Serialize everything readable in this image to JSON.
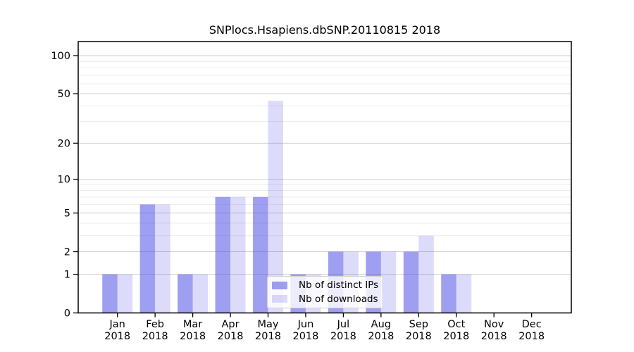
{
  "chart_data": {
    "type": "bar",
    "title": "SNPlocs.Hsapiens.dbSNP.20110815 2018",
    "year_label": "2018",
    "categories": [
      "Jan",
      "Feb",
      "Mar",
      "Apr",
      "May",
      "Jun",
      "Jul",
      "Aug",
      "Sep",
      "Oct",
      "Nov",
      "Dec"
    ],
    "series": [
      {
        "name": "Nb of distinct IPs",
        "color": "rgba(80,80,230,0.55)",
        "values": [
          1,
          6,
          1,
          7,
          7,
          1,
          2,
          2,
          2,
          1,
          0,
          0
        ]
      },
      {
        "name": "Nb of downloads",
        "color": "rgba(80,80,230,0.20)",
        "values": [
          1,
          6,
          1,
          7,
          44,
          1,
          2,
          2,
          3,
          1,
          0,
          0
        ]
      }
    ],
    "y_axis": {
      "scale": "log1p",
      "ticks": [
        0,
        1,
        2,
        5,
        10,
        20,
        50,
        100
      ],
      "minor_gridlines": [
        3,
        4,
        6,
        7,
        8,
        9,
        30,
        40,
        60,
        70,
        80,
        90
      ],
      "ylim": [
        0,
        130
      ]
    },
    "xlabel": "",
    "ylabel": "",
    "grid": "on",
    "legend_position": "lower center"
  },
  "colors": {
    "grid_major": "#cfcfcf",
    "grid_minor": "#ececec",
    "axis": "#000000",
    "title_color": "#000000"
  }
}
